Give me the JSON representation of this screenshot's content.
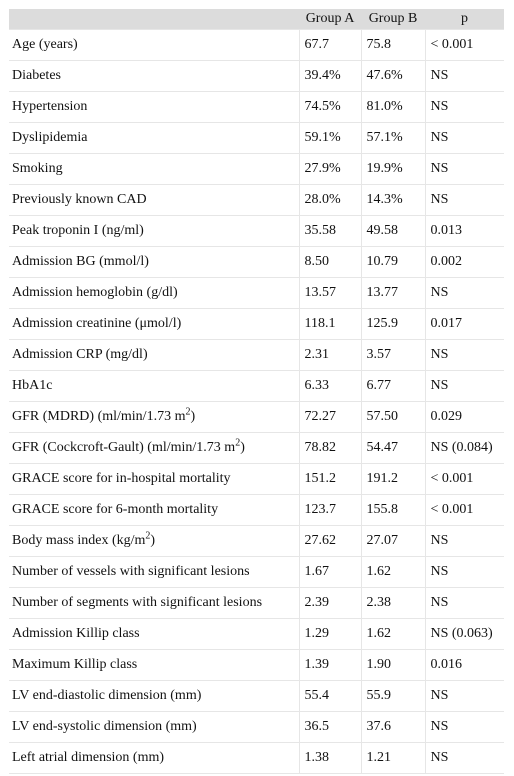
{
  "table": {
    "headers": [
      "",
      "Group A",
      "Group B",
      "p"
    ],
    "rows": [
      {
        "label": "Age (years)",
        "a": "67.7",
        "b": "75.8",
        "p": "< 0.001"
      },
      {
        "label": "Diabetes",
        "a": "39.4%",
        "b": "47.6%",
        "p": "NS"
      },
      {
        "label": "Hypertension",
        "a": "74.5%",
        "b": "81.0%",
        "p": "NS"
      },
      {
        "label": "Dyslipidemia",
        "a": "59.1%",
        "b": "57.1%",
        "p": "NS"
      },
      {
        "label": "Smoking",
        "a": "27.9%",
        "b": "19.9%",
        "p": "NS"
      },
      {
        "label": "Previously known CAD",
        "a": "28.0%",
        "b": "14.3%",
        "p": "NS"
      },
      {
        "label": "Peak troponin I (ng/ml)",
        "a": "35.58",
        "b": "49.58",
        "p": "0.013"
      },
      {
        "label": "Admission BG (mmol/l)",
        "a": "8.50",
        "b": "10.79",
        "p": "0.002"
      },
      {
        "label": "Admission hemoglobin (g/dl)",
        "a": "13.57",
        "b": "13.77",
        "p": "NS"
      },
      {
        "label": "Admission creatinine (μmol/l)",
        "a": "118.1",
        "b": "125.9",
        "p": "0.017"
      },
      {
        "label": "Admission CRP (mg/dl)",
        "a": "2.31",
        "b": "3.57",
        "p": "NS"
      },
      {
        "label": "HbA1c",
        "a": "6.33",
        "b": "6.77",
        "p": "NS"
      },
      {
        "label": "GFR (MDRD) (ml/min/1.73 m",
        "sup": "2",
        "suffix": ")",
        "a": "72.27",
        "b": "57.50",
        "p": "0.029"
      },
      {
        "label": "GFR (Cockcroft-Gault) (ml/min/1.73 m",
        "sup": "2",
        "suffix": ")",
        "a": "78.82",
        "b": "54.47",
        "p": "NS (0.084)"
      },
      {
        "label": "GRACE score for in-hospital mortality",
        "a": "151.2",
        "b": "191.2",
        "p": "< 0.001"
      },
      {
        "label": "GRACE score for 6-month mortality",
        "a": "123.7",
        "b": "155.8",
        "p": "< 0.001"
      },
      {
        "label": "Body mass index (kg/m",
        "sup": "2",
        "suffix": ")",
        "a": "27.62",
        "b": "27.07",
        "p": "NS"
      },
      {
        "label": "Number of vessels with significant lesions",
        "a": "1.67",
        "b": "1.62",
        "p": "NS"
      },
      {
        "label": "Number of segments with significant lesions",
        "a": "2.39",
        "b": "2.38",
        "p": "NS"
      },
      {
        "label": "Admission Killip class",
        "a": "1.29",
        "b": "1.62",
        "p": "NS (0.063)"
      },
      {
        "label": "Maximum Killip class",
        "a": "1.39",
        "b": "1.90",
        "p": "0.016"
      },
      {
        "label": "LV end-diastolic dimension (mm)",
        "a": "55.4",
        "b": "55.9",
        "p": "NS"
      },
      {
        "label": "LV end-systolic dimension (mm)",
        "a": "36.5",
        "b": "37.6",
        "p": "NS"
      },
      {
        "label": "Left atrial dimension (mm)",
        "a": "1.38",
        "b": "1.21",
        "p": "NS"
      }
    ]
  }
}
